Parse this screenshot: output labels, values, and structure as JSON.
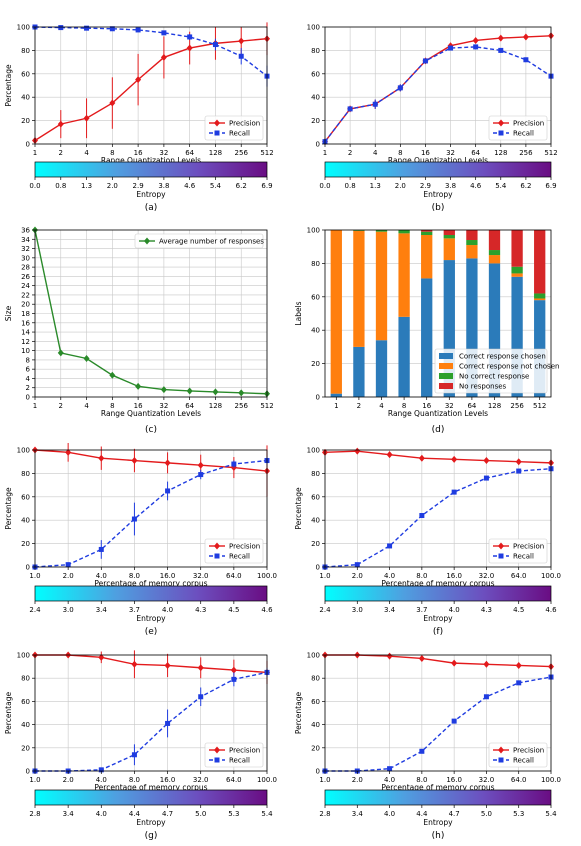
{
  "colors": {
    "precision": "#e31a1c",
    "recall": "#1f3ce0",
    "avg_responses": "#2a8a2a",
    "correct_chosen": "#2b7bba",
    "correct_not_chosen": "#ff7f0e",
    "no_correct": "#2ca02c",
    "no_response": "#d62728",
    "cmap_start": "#00ffff",
    "cmap_end": "#6a0d83"
  },
  "chart_data": [
    {
      "id": "a",
      "type": "line",
      "caption": "(a)",
      "xlabel": "Range Quantization Levels",
      "ylabel": "Percentage",
      "x": [
        "1",
        "2",
        "4",
        "8",
        "16",
        "32",
        "64",
        "128",
        "256",
        "512"
      ],
      "ylim": [
        0,
        100
      ],
      "yticks": [
        "0",
        "20",
        "40",
        "60",
        "80",
        "100"
      ],
      "grid": true,
      "legend": "bottom-right",
      "series": [
        {
          "name": "Precision",
          "values": [
            3,
            17,
            22,
            35,
            55,
            74,
            82,
            86,
            88,
            90
          ],
          "err": [
            0,
            12,
            17,
            22,
            22,
            18,
            14,
            14,
            12,
            14
          ]
        },
        {
          "name": "Recall",
          "values": [
            100,
            99.5,
            99,
            98.5,
            97.5,
            95,
            91.5,
            85,
            75,
            58
          ],
          "err": [
            0,
            0.5,
            0.5,
            0.8,
            1.2,
            1.5,
            2.5,
            5,
            7,
            9
          ]
        }
      ],
      "colorbar": {
        "label": "Entropy",
        "ticks": [
          "0.0",
          "0.8",
          "1.3",
          "2.0",
          "2.9",
          "3.8",
          "4.6",
          "5.4",
          "6.2",
          "6.9"
        ]
      }
    },
    {
      "id": "b",
      "type": "line",
      "caption": "(b)",
      "xlabel": "Range Quantization Levels",
      "ylabel": "",
      "x": [
        "1",
        "2",
        "4",
        "8",
        "16",
        "32",
        "64",
        "128",
        "256",
        "512"
      ],
      "ylim": [
        0,
        100
      ],
      "yticks": [
        "0",
        "20",
        "40",
        "60",
        "80",
        "100"
      ],
      "grid": true,
      "legend": "bottom-right",
      "series": [
        {
          "name": "Precision",
          "values": [
            2,
            30,
            34,
            48,
            71,
            84,
            88.5,
            90.5,
            91.5,
            92.5
          ],
          "err": [
            0,
            2,
            4,
            3,
            2,
            2,
            1,
            1,
            1,
            1
          ]
        },
        {
          "name": "Recall",
          "values": [
            2,
            30,
            34,
            48,
            71,
            82,
            83,
            80,
            72,
            58
          ],
          "err": [
            0,
            2,
            4,
            3,
            2,
            2,
            2,
            2,
            2,
            2
          ]
        }
      ],
      "colorbar": {
        "label": "Entropy",
        "ticks": [
          "0.0",
          "0.8",
          "1.3",
          "2.0",
          "2.9",
          "3.8",
          "4.6",
          "5.4",
          "6.2",
          "6.9"
        ]
      }
    },
    {
      "id": "c",
      "type": "line",
      "caption": "(c)",
      "xlabel": "Range Quantization Levels",
      "ylabel": "Size",
      "x": [
        "1",
        "2",
        "4",
        "8",
        "16",
        "32",
        "64",
        "128",
        "256",
        "512"
      ],
      "ylim": [
        0,
        36
      ],
      "yticks": [
        "0",
        "2",
        "4",
        "6",
        "8",
        "10",
        "12",
        "14",
        "16",
        "18",
        "20",
        "22",
        "24",
        "26",
        "28",
        "30",
        "32",
        "34",
        "36"
      ],
      "grid": true,
      "legend": "top-right",
      "series": [
        {
          "name": "Average number of responses",
          "values": [
            36,
            9.5,
            8.3,
            4.7,
            2.3,
            1.6,
            1.3,
            1.1,
            0.9,
            0.7
          ]
        }
      ]
    },
    {
      "id": "d",
      "type": "bar",
      "caption": "(d)",
      "xlabel": "Range Quantization Levels",
      "ylabel": "Labels",
      "categories": [
        "1",
        "2",
        "4",
        "8",
        "16",
        "32",
        "64",
        "128",
        "256",
        "512"
      ],
      "ylim": [
        0,
        100
      ],
      "yticks": [
        "0",
        "20",
        "40",
        "60",
        "80",
        "100"
      ],
      "grid": true,
      "legend": "bottom-right",
      "stacked": true,
      "series": [
        {
          "name": "Correct response chosen",
          "values": [
            2,
            30,
            34,
            48,
            71,
            82,
            83,
            80,
            72,
            58
          ]
        },
        {
          "name": "Correct response not chosen",
          "values": [
            98,
            69.5,
            65,
            50,
            26,
            13,
            8,
            5,
            2,
            1
          ]
        },
        {
          "name": "No correct response",
          "values": [
            0,
            0.5,
            1,
            2,
            2,
            2,
            3,
            3,
            4,
            3
          ]
        },
        {
          "name": "No responses",
          "values": [
            0,
            0,
            0,
            0,
            1,
            3,
            6,
            12,
            22,
            38
          ]
        }
      ]
    },
    {
      "id": "e",
      "type": "line",
      "caption": "(e)",
      "xlabel": "Percentage of memory corpus",
      "ylabel": "Percentage",
      "x": [
        "1.0",
        "2.0",
        "4.0",
        "8.0",
        "16.0",
        "32.0",
        "64.0",
        "100.0"
      ],
      "ylim": [
        0,
        100
      ],
      "yticks": [
        "0",
        "20",
        "40",
        "60",
        "80",
        "100"
      ],
      "grid": true,
      "legend": "bottom-right",
      "series": [
        {
          "name": "Precision",
          "values": [
            100,
            98,
            93,
            91,
            89,
            87,
            85,
            82
          ],
          "err": [
            0,
            8,
            10,
            10,
            9,
            9,
            9,
            22
          ]
        },
        {
          "name": "Recall",
          "values": [
            0,
            2,
            15,
            41,
            65,
            79,
            88,
            91
          ],
          "err": [
            0,
            2,
            8,
            14,
            8,
            4,
            3,
            3
          ]
        }
      ],
      "colorbar": {
        "label": "Entropy",
        "ticks": [
          "2.4",
          "3.0",
          "3.4",
          "3.7",
          "4.0",
          "4.3",
          "4.5",
          "4.6"
        ]
      }
    },
    {
      "id": "f",
      "type": "line",
      "caption": "(f)",
      "xlabel": "Percentage of memory corpus",
      "ylabel": "Percentage",
      "x": [
        "1.0",
        "2.0",
        "4.0",
        "8.0",
        "16.0",
        "32.0",
        "64.0",
        "100.0"
      ],
      "ylim": [
        0,
        100
      ],
      "yticks": [
        "0",
        "20",
        "40",
        "60",
        "80",
        "100"
      ],
      "grid": true,
      "legend": "bottom-right",
      "series": [
        {
          "name": "Precision",
          "values": [
            98,
            99,
            96,
            93,
            92,
            91,
            90,
            89
          ],
          "err": [
            0,
            0,
            0,
            0,
            0,
            0,
            0,
            0
          ]
        },
        {
          "name": "Recall",
          "values": [
            0,
            2,
            18,
            44,
            64,
            76,
            82,
            84
          ],
          "err": [
            0,
            0,
            0,
            0,
            0,
            0,
            0,
            0
          ]
        }
      ],
      "colorbar": {
        "label": "Entropy",
        "ticks": [
          "2.4",
          "3.0",
          "3.4",
          "3.7",
          "4.0",
          "4.3",
          "4.5",
          "4.6"
        ]
      }
    },
    {
      "id": "g",
      "type": "line",
      "caption": "(g)",
      "xlabel": "Percentage of memory corpus",
      "ylabel": "Percentage",
      "x": [
        "1.0",
        "2.0",
        "4.0",
        "8.0",
        "16.0",
        "32.0",
        "64.0",
        "100.0"
      ],
      "ylim": [
        0,
        100
      ],
      "yticks": [
        "0",
        "20",
        "40",
        "60",
        "80",
        "100"
      ],
      "grid": true,
      "legend": "bottom-right",
      "series": [
        {
          "name": "Precision",
          "values": [
            100,
            100,
            98,
            92,
            91,
            89,
            87,
            85
          ],
          "err": [
            0,
            0,
            5,
            12,
            10,
            9,
            9,
            10
          ]
        },
        {
          "name": "Recall",
          "values": [
            0,
            0,
            1,
            14,
            41,
            64,
            79,
            85
          ],
          "err": [
            0,
            0,
            1,
            9,
            12,
            8,
            6,
            4
          ]
        }
      ],
      "colorbar": {
        "label": "Entropy",
        "ticks": [
          "2.8",
          "3.4",
          "4.0",
          "4.4",
          "4.7",
          "5.0",
          "5.3",
          "5.4"
        ]
      }
    },
    {
      "id": "h",
      "type": "line",
      "caption": "(h)",
      "xlabel": "Percentage of memory corpus",
      "ylabel": "Percentage",
      "x": [
        "1.0",
        "2.0",
        "4.0",
        "8.0",
        "16.0",
        "32.0",
        "64.0",
        "100.0"
      ],
      "ylim": [
        0,
        100
      ],
      "yticks": [
        "0",
        "20",
        "40",
        "60",
        "80",
        "100"
      ],
      "grid": true,
      "legend": "bottom-right",
      "series": [
        {
          "name": "Precision",
          "values": [
            100,
            100,
            99,
            97,
            93,
            92,
            91,
            90
          ],
          "err": [
            0,
            0,
            0,
            0,
            0,
            0,
            0,
            0
          ]
        },
        {
          "name": "Recall",
          "values": [
            0,
            0,
            2,
            17,
            43,
            64,
            76,
            81
          ],
          "err": [
            0,
            0,
            0,
            0,
            0,
            0,
            0,
            0
          ]
        }
      ],
      "colorbar": {
        "label": "Entropy",
        "ticks": [
          "2.8",
          "3.4",
          "4.0",
          "4.4",
          "4.7",
          "5.0",
          "5.3",
          "5.4"
        ]
      }
    }
  ]
}
